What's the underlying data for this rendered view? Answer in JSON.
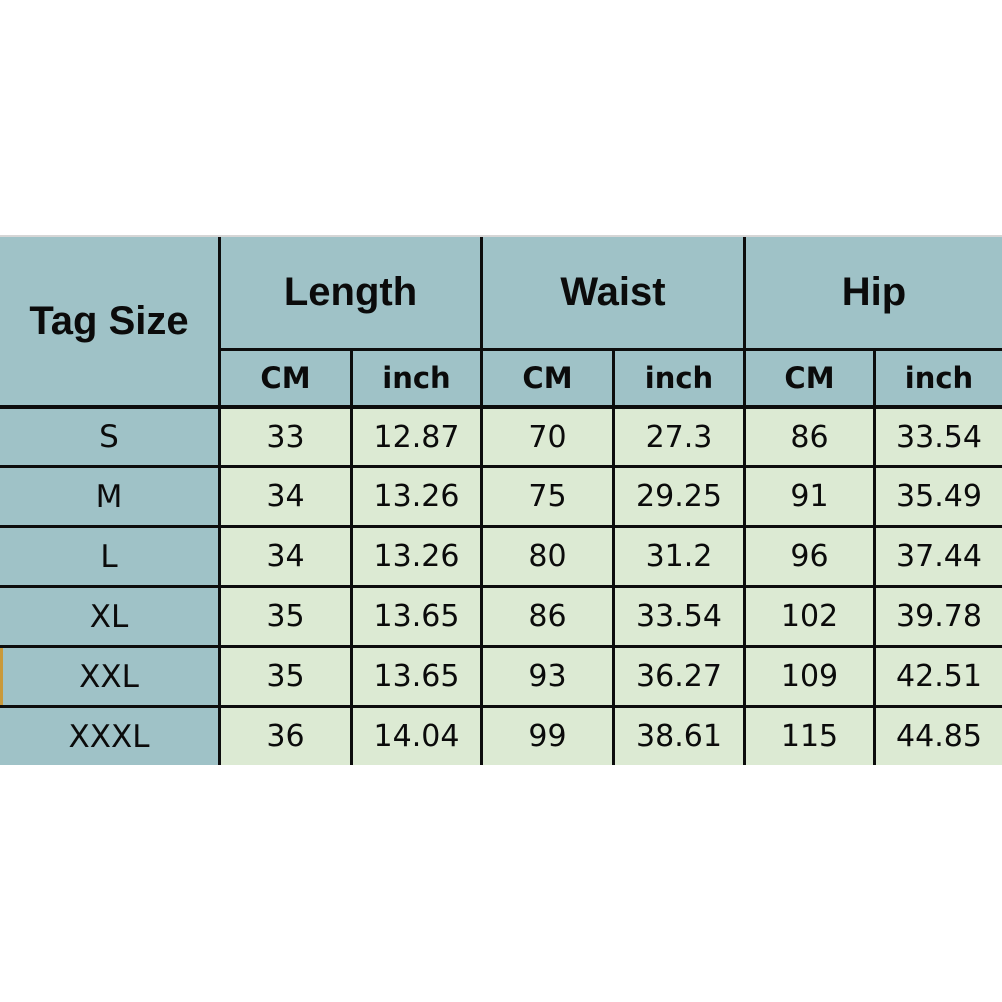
{
  "chart_data": {
    "type": "table",
    "corner_header": "Tag Size",
    "column_groups": [
      "Length",
      "Waist",
      "Hip"
    ],
    "unit_headers": [
      "CM",
      "inch",
      "CM",
      "inch",
      "CM",
      "inch"
    ],
    "rows": [
      {
        "size": "S",
        "values": [
          "33",
          "12.87",
          "70",
          "27.3",
          "86",
          "33.54"
        ]
      },
      {
        "size": "M",
        "values": [
          "34",
          "13.26",
          "75",
          "29.25",
          "91",
          "35.49"
        ]
      },
      {
        "size": "L",
        "values": [
          "34",
          "13.26",
          "80",
          "31.2",
          "96",
          "37.44"
        ]
      },
      {
        "size": "XL",
        "values": [
          "35",
          "13.65",
          "86",
          "33.54",
          "102",
          "39.78"
        ]
      },
      {
        "size": "XXL",
        "values": [
          "35",
          "13.65",
          "93",
          "36.27",
          "109",
          "42.51"
        ]
      },
      {
        "size": "XXXL",
        "values": [
          "36",
          "14.04",
          "99",
          "38.61",
          "115",
          "44.85"
        ]
      }
    ],
    "layout_hints": {
      "header_bg": "#9fc2c7",
      "data_bg": "#dcead3",
      "grid_line_color": "#0d0d0d",
      "top_edge_line_color": "#d6d6d6",
      "left_accent_color": "#c9993a",
      "background": "#ffffff"
    }
  }
}
